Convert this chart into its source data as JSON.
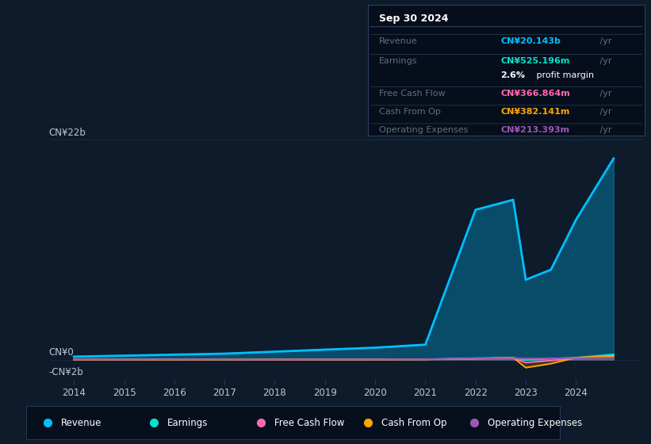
{
  "bg_color": "#0d1b2a",
  "chart_bg": "#0d1b2a",
  "title_date": "Sep 30 2024",
  "ylim": [
    -2000000000,
    22000000000
  ],
  "ytick_labels": [
    "-CN¥2b",
    "CN¥0",
    "CN¥22b"
  ],
  "ytick_vals": [
    -2000000000,
    0,
    22000000000
  ],
  "years": [
    2014,
    2015,
    2016,
    2017,
    2018,
    2019,
    2020,
    2021,
    2022,
    2022.75,
    2023,
    2023.5,
    2024,
    2024.75
  ],
  "revenue": [
    300000000,
    400000000,
    500000000,
    600000000,
    800000000,
    1000000000,
    1200000000,
    1500000000,
    15000000000,
    16000000000,
    8000000000,
    9000000000,
    14000000000,
    20143000000
  ],
  "earnings": [
    10000000,
    10000000,
    10000000,
    10000000,
    20000000,
    20000000,
    20000000,
    30000000,
    150000000,
    200000000,
    -50000000,
    100000000,
    200000000,
    525000000
  ],
  "free_cash_flow": [
    5000000,
    5000000,
    5000000,
    5000000,
    10000000,
    10000000,
    10000000,
    20000000,
    100000000,
    150000000,
    -300000000,
    -100000000,
    150000000,
    367000000
  ],
  "cash_from_op": [
    -10000000,
    -10000000,
    -10000000,
    0,
    10000000,
    10000000,
    20000000,
    30000000,
    100000000,
    200000000,
    -800000000,
    -400000000,
    200000000,
    382000000
  ],
  "operating_expenses": [
    8000000,
    8000000,
    10000000,
    10000000,
    15000000,
    20000000,
    25000000,
    40000000,
    120000000,
    150000000,
    100000000,
    120000000,
    150000000,
    213000000
  ],
  "revenue_color": "#00bfff",
  "earnings_color": "#00e5cc",
  "fcf_color": "#ff69b4",
  "cfop_color": "#ffa500",
  "opex_color": "#9b59b6",
  "revenue_fill_alpha": 0.3,
  "grid_color": "#1e3a5f",
  "text_color": "#c0c8d8",
  "dim_text_color": "#607080",
  "legend_items": [
    {
      "label": "Revenue",
      "color": "#00bfff"
    },
    {
      "label": "Earnings",
      "color": "#00e5cc"
    },
    {
      "label": "Free Cash Flow",
      "color": "#ff69b4"
    },
    {
      "label": "Cash From Op",
      "color": "#ffa500"
    },
    {
      "label": "Operating Expenses",
      "color": "#9b59b6"
    }
  ],
  "xtick_years": [
    2014,
    2015,
    2016,
    2017,
    2018,
    2019,
    2020,
    2021,
    2022,
    2023,
    2024
  ],
  "info_rows": [
    {
      "label": "Revenue",
      "value": "CN¥20.143b",
      "unit": " /yr",
      "color": "#00bfff",
      "is_margin": false
    },
    {
      "label": "Earnings",
      "value": "CN¥525.196m",
      "unit": " /yr",
      "color": "#00e5cc",
      "is_margin": false
    },
    {
      "label": "",
      "value": "2.6%",
      "unit": " profit margin",
      "color": "white",
      "is_margin": true
    },
    {
      "label": "Free Cash Flow",
      "value": "CN¥366.864m",
      "unit": " /yr",
      "color": "#ff69b4",
      "is_margin": false
    },
    {
      "label": "Cash From Op",
      "value": "CN¥382.141m",
      "unit": " /yr",
      "color": "#ffa500",
      "is_margin": false
    },
    {
      "label": "Operating Expenses",
      "value": "CN¥213.393m",
      "unit": " /yr",
      "color": "#9b59b6",
      "is_margin": false
    }
  ]
}
